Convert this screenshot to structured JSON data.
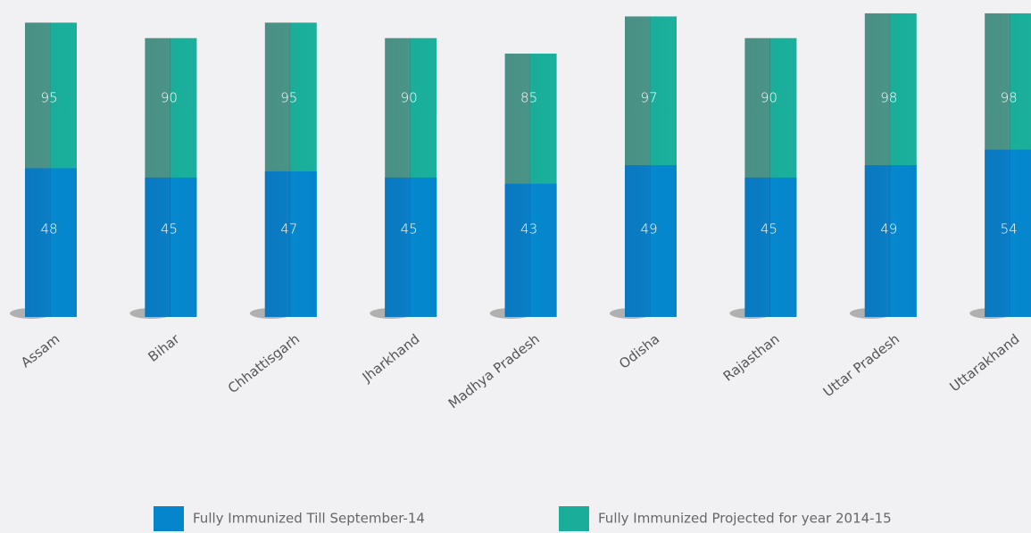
{
  "chart_data": {
    "type": "bar",
    "categories": [
      "Assam",
      "Bihar",
      "Chhattisgarh",
      "Jharkhand",
      "Madhya Pradesh",
      "Odisha",
      "Rajasthan",
      "Uttar Pradesh",
      "Uttarakhand"
    ],
    "series": [
      {
        "name": "Fully Immunized Till September-14",
        "color": "#0585cc",
        "values": [
          48,
          45,
          47,
          45,
          43,
          49,
          45,
          49,
          54
        ]
      },
      {
        "name": "Fully Immunized Projected for year 2014-15",
        "color": "#1aae9a",
        "values": [
          95,
          90,
          95,
          90,
          85,
          97,
          90,
          98,
          98
        ]
      }
    ]
  }
}
